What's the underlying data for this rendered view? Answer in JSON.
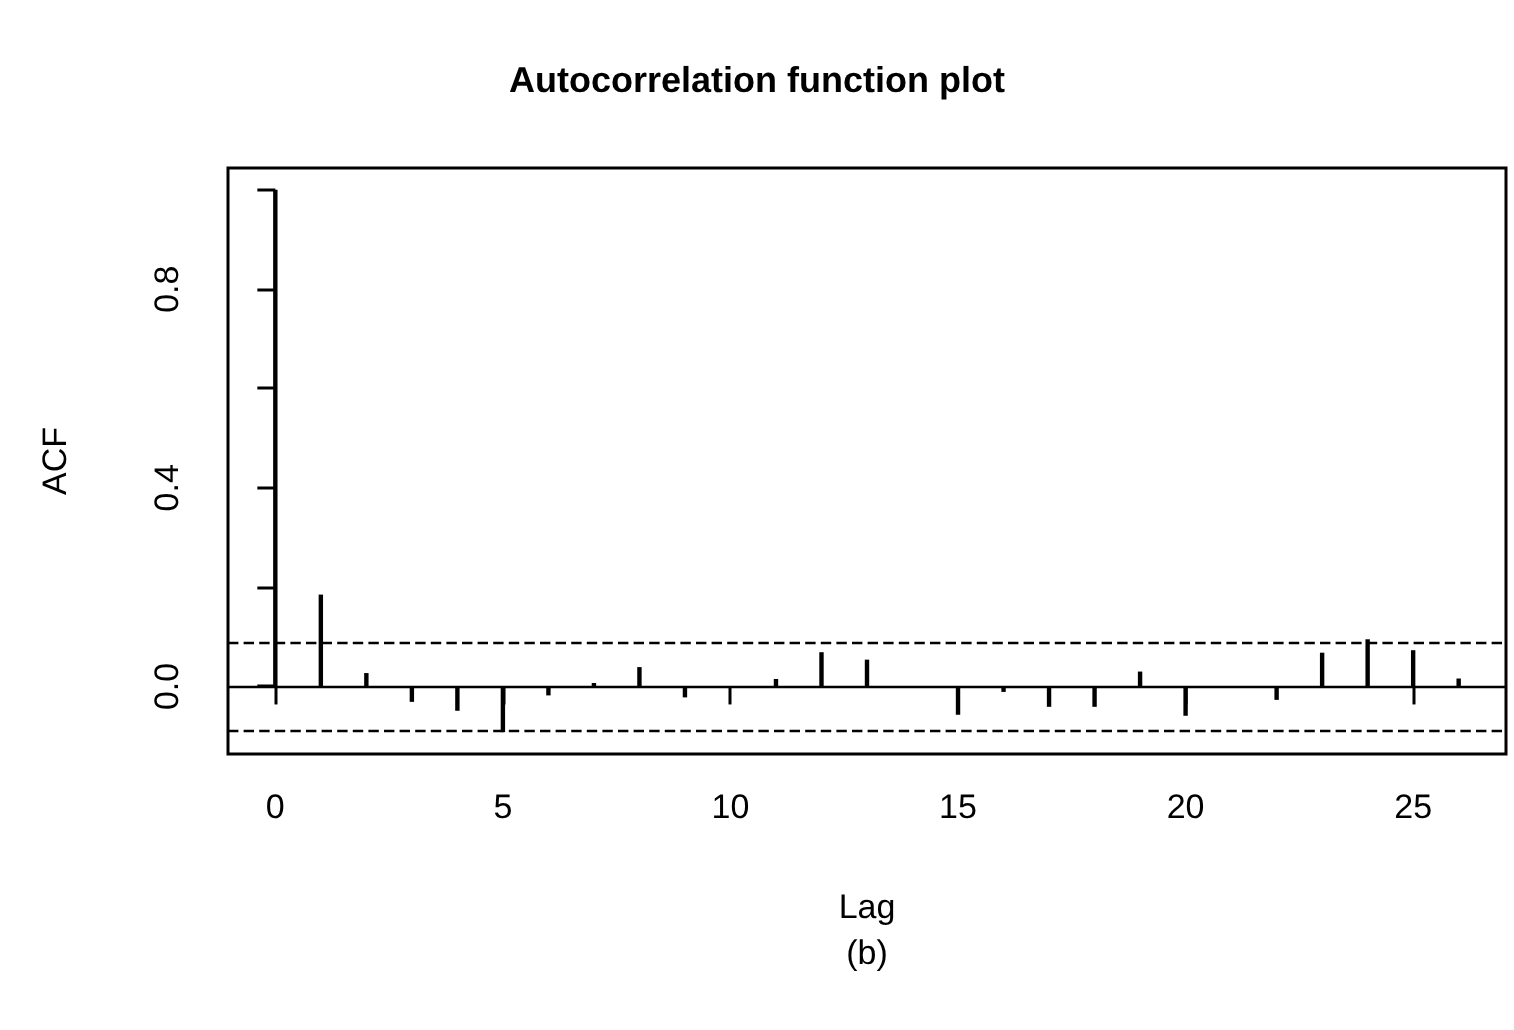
{
  "chart_data": {
    "type": "bar",
    "title": "Autocorrelation function plot",
    "xlabel": "Lag",
    "ylabel": "ACF",
    "annotations": [
      "(b)"
    ],
    "x": [
      0,
      1,
      2,
      3,
      4,
      5,
      6,
      7,
      8,
      9,
      10,
      11,
      12,
      13,
      14,
      15,
      16,
      17,
      18,
      19,
      20,
      21,
      22,
      23,
      24,
      25,
      26
    ],
    "values": [
      1.0,
      0.185,
      0.027,
      -0.031,
      -0.049,
      -0.092,
      -0.018,
      0.007,
      0.039,
      -0.022,
      null,
      0.015,
      0.069,
      0.054,
      null,
      -0.057,
      -0.011,
      -0.041,
      -0.041,
      0.03,
      -0.059,
      null,
      -0.027,
      0.068,
      0.095,
      0.073,
      0.016
    ],
    "color": "#000000",
    "xlim": [
      -1.04,
      27.04
    ],
    "xticks": [
      0,
      5,
      10,
      15,
      20,
      25
    ],
    "ylim": [
      -0.136,
      1.044
    ],
    "yticks": [
      {
        "value": 0,
        "label": "0.0"
      },
      {
        "value": 0.2,
        "label": null
      },
      {
        "value": 0.4,
        "label": "0.4"
      },
      {
        "value": 0.6,
        "label": null
      },
      {
        "value": 0.8,
        "label": "0.8"
      },
      {
        "value": 1.0,
        "label": null
      }
    ],
    "ref_lines": [
      {
        "axis": "y",
        "value": 0,
        "color": "#000000",
        "line_style": "solid"
      },
      {
        "axis": "y",
        "value": 0.087,
        "color": "#000000",
        "line_style": "dashed"
      },
      {
        "axis": "y",
        "value": -0.087,
        "color": "#000000",
        "line_style": "dashed"
      }
    ],
    "grid": false
  }
}
